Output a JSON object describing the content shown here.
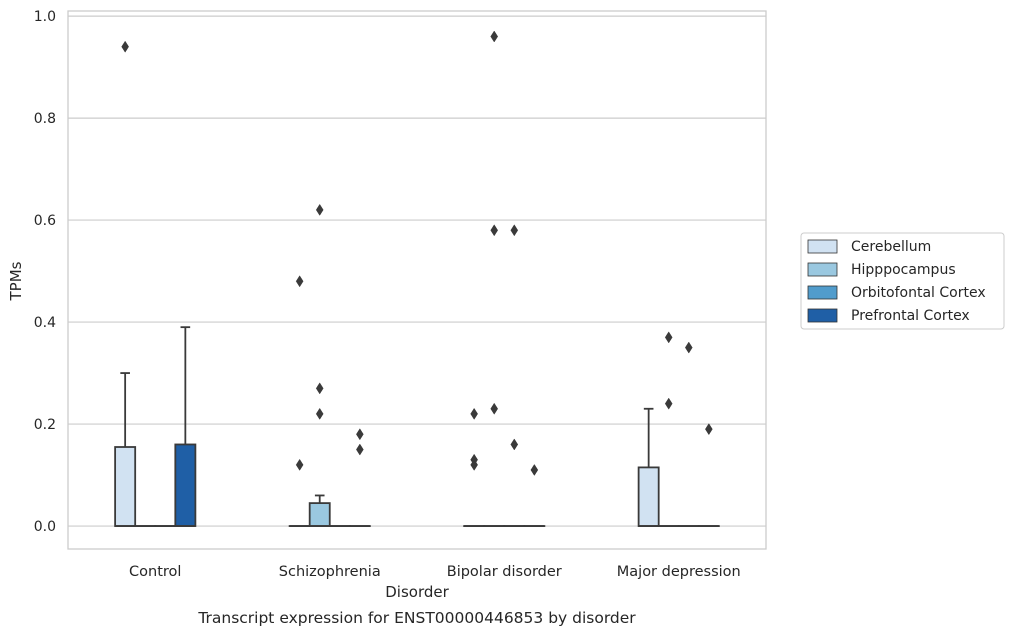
{
  "chart_data": {
    "type": "box",
    "title": "Transcript expression for ENST00000446853 by disorder",
    "xlabel": "Disorder",
    "ylabel": "TPMs",
    "ylim": [
      -0.045,
      1.01
    ],
    "yticks": [
      0.0,
      0.2,
      0.4,
      0.6,
      0.8,
      1.0
    ],
    "ytick_labels": [
      "0.0",
      "0.2",
      "0.4",
      "0.6",
      "0.8",
      "1.0"
    ],
    "grid": true,
    "legend_position": "right",
    "categories": [
      "Control",
      "Schizophrenia",
      "Bipolar disorder",
      "Major depression"
    ],
    "series": [
      {
        "name": "Cerebellum",
        "color": "#d1e2f2",
        "boxes": [
          {
            "q1": 0.0,
            "median": 0.0,
            "q3": 0.155,
            "whisker_low": 0.0,
            "whisker_high": 0.3,
            "outliers": [
              0.94
            ]
          },
          {
            "q1": 0.0,
            "median": 0.0,
            "q3": 0.0,
            "whisker_low": 0.0,
            "whisker_high": 0.0,
            "outliers": [
              0.12,
              0.48
            ]
          },
          {
            "q1": 0.0,
            "median": 0.0,
            "q3": 0.0,
            "whisker_low": 0.0,
            "whisker_high": 0.0,
            "outliers": [
              0.12,
              0.13,
              0.22
            ]
          },
          {
            "q1": 0.0,
            "median": 0.0,
            "q3": 0.115,
            "whisker_low": 0.0,
            "whisker_high": 0.23,
            "outliers": []
          }
        ]
      },
      {
        "name": "Hipppocampus",
        "color": "#9ac8e0",
        "boxes": [
          {
            "q1": 0.0,
            "median": 0.0,
            "q3": 0.0,
            "whisker_low": 0.0,
            "whisker_high": 0.0,
            "outliers": []
          },
          {
            "q1": 0.0,
            "median": 0.0,
            "q3": 0.045,
            "whisker_low": 0.0,
            "whisker_high": 0.06,
            "outliers": [
              0.22,
              0.27,
              0.62
            ]
          },
          {
            "q1": 0.0,
            "median": 0.0,
            "q3": 0.0,
            "whisker_low": 0.0,
            "whisker_high": 0.0,
            "outliers": [
              0.23,
              0.58,
              0.96
            ]
          },
          {
            "q1": 0.0,
            "median": 0.0,
            "q3": 0.0,
            "whisker_low": 0.0,
            "whisker_high": 0.0,
            "outliers": [
              0.24,
              0.37
            ]
          }
        ]
      },
      {
        "name": "Orbitofontal Cortex",
        "color": "#519ccc",
        "boxes": [
          {
            "q1": 0.0,
            "median": 0.0,
            "q3": 0.0,
            "whisker_low": 0.0,
            "whisker_high": 0.0,
            "outliers": []
          },
          {
            "q1": 0.0,
            "median": 0.0,
            "q3": 0.0,
            "whisker_low": 0.0,
            "whisker_high": 0.0,
            "outliers": []
          },
          {
            "q1": 0.0,
            "median": 0.0,
            "q3": 0.0,
            "whisker_low": 0.0,
            "whisker_high": 0.0,
            "outliers": [
              0.16,
              0.58
            ]
          },
          {
            "q1": 0.0,
            "median": 0.0,
            "q3": 0.0,
            "whisker_low": 0.0,
            "whisker_high": 0.0,
            "outliers": [
              0.35
            ]
          }
        ]
      },
      {
        "name": "Prefrontal Cortex",
        "color": "#1f5fa6",
        "boxes": [
          {
            "q1": 0.0,
            "median": 0.0,
            "q3": 0.16,
            "whisker_low": 0.0,
            "whisker_high": 0.39,
            "outliers": []
          },
          {
            "q1": 0.0,
            "median": 0.0,
            "q3": 0.0,
            "whisker_low": 0.0,
            "whisker_high": 0.0,
            "outliers": [
              0.15,
              0.18
            ]
          },
          {
            "q1": 0.0,
            "median": 0.0,
            "q3": 0.0,
            "whisker_low": 0.0,
            "whisker_high": 0.0,
            "outliers": [
              0.11
            ]
          },
          {
            "q1": 0.0,
            "median": 0.0,
            "q3": 0.0,
            "whisker_low": 0.0,
            "whisker_high": 0.0,
            "outliers": [
              0.19
            ]
          }
        ]
      }
    ]
  }
}
